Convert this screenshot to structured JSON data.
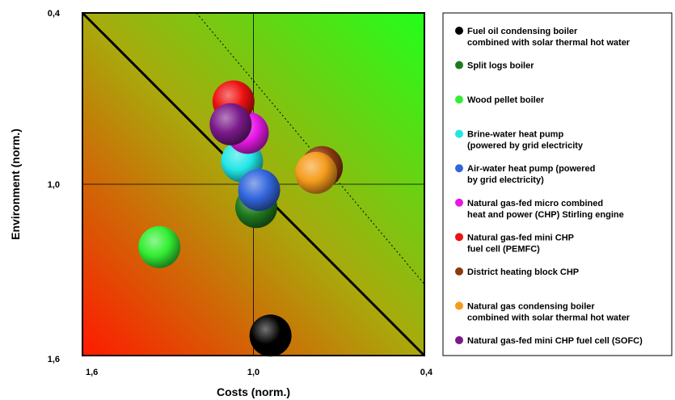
{
  "chart_data": {
    "type": "scatter",
    "xlabel": "Costs (norm.)",
    "ylabel": "Environment (norm.)",
    "x_ticks": [
      "1,6",
      "1,0",
      "0,4"
    ],
    "y_ticks": [
      "0,4",
      "1,0",
      "1,6"
    ],
    "xlim": [
      1.6,
      0.4
    ],
    "ylim": [
      1.6,
      0.4
    ],
    "grid": true,
    "legend_position": "right",
    "background": "gradient red (bottom-left) to green (top-right)",
    "reference_lines": [
      {
        "style": "solid",
        "from": [
          1.6,
          0.4
        ],
        "to": [
          0.4,
          1.6
        ]
      },
      {
        "style": "dotted",
        "from": [
          1.2,
          0.4
        ],
        "to": [
          0.4,
          1.35
        ]
      }
    ],
    "series": [
      {
        "name": "Fuel oil condensing boiler combined with solar thermal hot water",
        "label_lines": [
          "Fuel oil condensing boiler",
          "combined with solar thermal hot water"
        ],
        "color": "#000000",
        "x": 0.94,
        "y": 1.53
      },
      {
        "name": "Split logs boiler",
        "label_lines": [
          "Split logs boiler"
        ],
        "color": "#1f7a1f",
        "x": 0.99,
        "y": 1.08
      },
      {
        "name": "Wood pellet boiler",
        "label_lines": [
          "Wood pellet boiler"
        ],
        "color": "#33ee33",
        "x": 1.33,
        "y": 1.22
      },
      {
        "name": "Brine-water heat pump (powered by grid electricity)",
        "label_lines": [
          "Brine-water heat pump",
          "(powered by grid electricity"
        ],
        "color": "#22e6e6",
        "x": 1.04,
        "y": 0.92
      },
      {
        "name": "Air-water heat pump (powered by grid electricity)",
        "label_lines": [
          "Air-water heat pump (powered",
          "by grid electricity)"
        ],
        "color": "#3366dd",
        "x": 0.98,
        "y": 1.02
      },
      {
        "name": "Natural gas-fed micro combined heat and power (CHP) Stirling engine",
        "label_lines": [
          "Natural gas-fed micro combined",
          "heat and power (CHP) Stirling engine"
        ],
        "color": "#e619e6",
        "x": 1.02,
        "y": 0.82
      },
      {
        "name": "Natural gas-fed mini CHP fuel cell (PEMFC)",
        "label_lines": [
          "Natural gas-fed mini CHP",
          "fuel cell (PEMFC)"
        ],
        "color": "#ee1111",
        "x": 1.07,
        "y": 0.71
      },
      {
        "name": "District heating block CHP",
        "label_lines": [
          "District heating block CHP"
        ],
        "color": "#8b3a10",
        "x": 0.76,
        "y": 0.94
      },
      {
        "name": "Natural gas condensing boiler combined with solar thermal hot water",
        "label_lines": [
          "Natural gas condensing boiler",
          "combined with solar thermal hot water"
        ],
        "color": "#f59b1c",
        "x": 0.78,
        "y": 0.96
      },
      {
        "name": "Natural gas-fed mini CHP fuel cell (SOFC)",
        "label_lines": [
          "Natural gas-fed mini CHP fuel cell (SOFC)"
        ],
        "color": "#7a1a8a",
        "x": 1.08,
        "y": 0.79
      }
    ]
  }
}
